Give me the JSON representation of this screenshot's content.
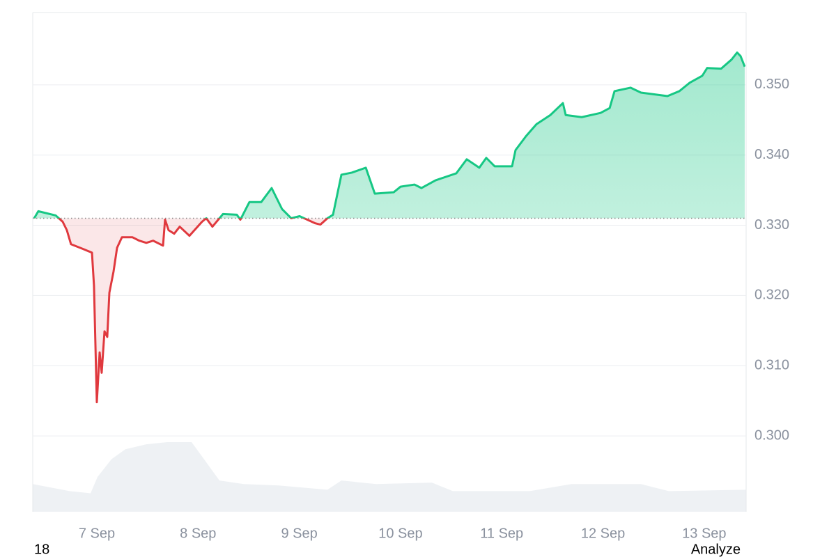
{
  "chart_data": {
    "type": "line",
    "baseline": 0.331,
    "xlim": [
      6.367,
      13.414
    ],
    "xticks": [
      {
        "value": 7,
        "label": "7 Sep"
      },
      {
        "value": 8,
        "label": "8 Sep"
      },
      {
        "value": 9,
        "label": "9 Sep"
      },
      {
        "value": 10,
        "label": "10 Sep"
      },
      {
        "value": 11,
        "label": "11 Sep"
      },
      {
        "value": 12,
        "label": "12 Sep"
      },
      {
        "value": 13,
        "label": "13 Sep"
      }
    ],
    "ylim": [
      0.2892,
      0.3603
    ],
    "yticks": [
      {
        "value": 0.3,
        "label": "0.300"
      },
      {
        "value": 0.31,
        "label": "0.310"
      },
      {
        "value": 0.32,
        "label": "0.320"
      },
      {
        "value": 0.33,
        "label": "0.330"
      },
      {
        "value": 0.34,
        "label": "0.340"
      },
      {
        "value": 0.35,
        "label": "0.350"
      }
    ],
    "y2lim": [
      0,
      7.03
    ],
    "grid": true,
    "up_color": "#16c784",
    "down_color": "#e0393e",
    "series": [
      {
        "color": "#16c784",
        "x": [
          6.381,
          6.422,
          6.594,
          6.663,
          6.704,
          6.745,
          6.869,
          6.952,
          6.972,
          7.0,
          7.028,
          7.048,
          7.076,
          7.103,
          7.124,
          7.165,
          7.2,
          7.248,
          7.351,
          7.42,
          7.489,
          7.557,
          7.654,
          7.674,
          7.709,
          7.764,
          7.819,
          7.915,
          8.039,
          8.081,
          8.142,
          8.246,
          8.383,
          8.418,
          8.507,
          8.624,
          8.727,
          8.83,
          8.92,
          9.003,
          9.154,
          9.209,
          9.278,
          9.333,
          9.416,
          9.519,
          9.657,
          9.746,
          9.932,
          10.001,
          10.138,
          10.207,
          10.345,
          10.551,
          10.654,
          10.778,
          10.847,
          10.93,
          11.102,
          11.136,
          11.24,
          11.343,
          11.48,
          11.604,
          11.632,
          11.79,
          11.976,
          12.066,
          12.114,
          12.272,
          12.375,
          12.637,
          12.754,
          12.857,
          12.981,
          13.029,
          13.167,
          13.27,
          13.325,
          13.359,
          13.4
        ],
        "values": [
          0.331,
          0.332,
          0.3314,
          0.3305,
          0.3293,
          0.3273,
          0.3266,
          0.3261,
          0.3214,
          0.3048,
          0.3119,
          0.309,
          0.3149,
          0.3141,
          0.3204,
          0.3234,
          0.3268,
          0.3283,
          0.3283,
          0.3278,
          0.3275,
          0.3278,
          0.3271,
          0.3308,
          0.3293,
          0.3288,
          0.3298,
          0.3285,
          0.3305,
          0.331,
          0.3298,
          0.3316,
          0.3315,
          0.3308,
          0.3333,
          0.3333,
          0.3353,
          0.3323,
          0.331,
          0.3313,
          0.3303,
          0.3301,
          0.331,
          0.3315,
          0.3372,
          0.3375,
          0.3382,
          0.3345,
          0.3347,
          0.3355,
          0.3358,
          0.3353,
          0.3364,
          0.3374,
          0.3394,
          0.3382,
          0.3396,
          0.3384,
          0.3384,
          0.3407,
          0.3427,
          0.3444,
          0.3457,
          0.3474,
          0.3457,
          0.3454,
          0.346,
          0.3467,
          0.3491,
          0.3496,
          0.3489,
          0.3484,
          0.3491,
          0.3503,
          0.3513,
          0.3524,
          0.3523,
          0.3536,
          0.3546,
          0.3541,
          0.3526
        ]
      },
      {
        "color": "#eef1f4",
        "axis": "y2",
        "x": [
          6.367,
          6.732,
          6.938,
          7.007,
          7.145,
          7.282,
          7.489,
          7.695,
          7.936,
          8.039,
          8.211,
          8.452,
          8.796,
          9.278,
          9.416,
          9.76,
          10.31,
          10.517,
          11.274,
          11.687,
          12.375,
          12.65,
          13.414
        ],
        "values": [
          0.39,
          0.29,
          0.26,
          0.49,
          0.74,
          0.88,
          0.95,
          0.98,
          0.98,
          0.78,
          0.44,
          0.39,
          0.37,
          0.31,
          0.44,
          0.39,
          0.41,
          0.29,
          0.29,
          0.39,
          0.39,
          0.29,
          0.31
        ]
      }
    ],
    "footer_left": "18",
    "footer_right": "Analyze"
  }
}
